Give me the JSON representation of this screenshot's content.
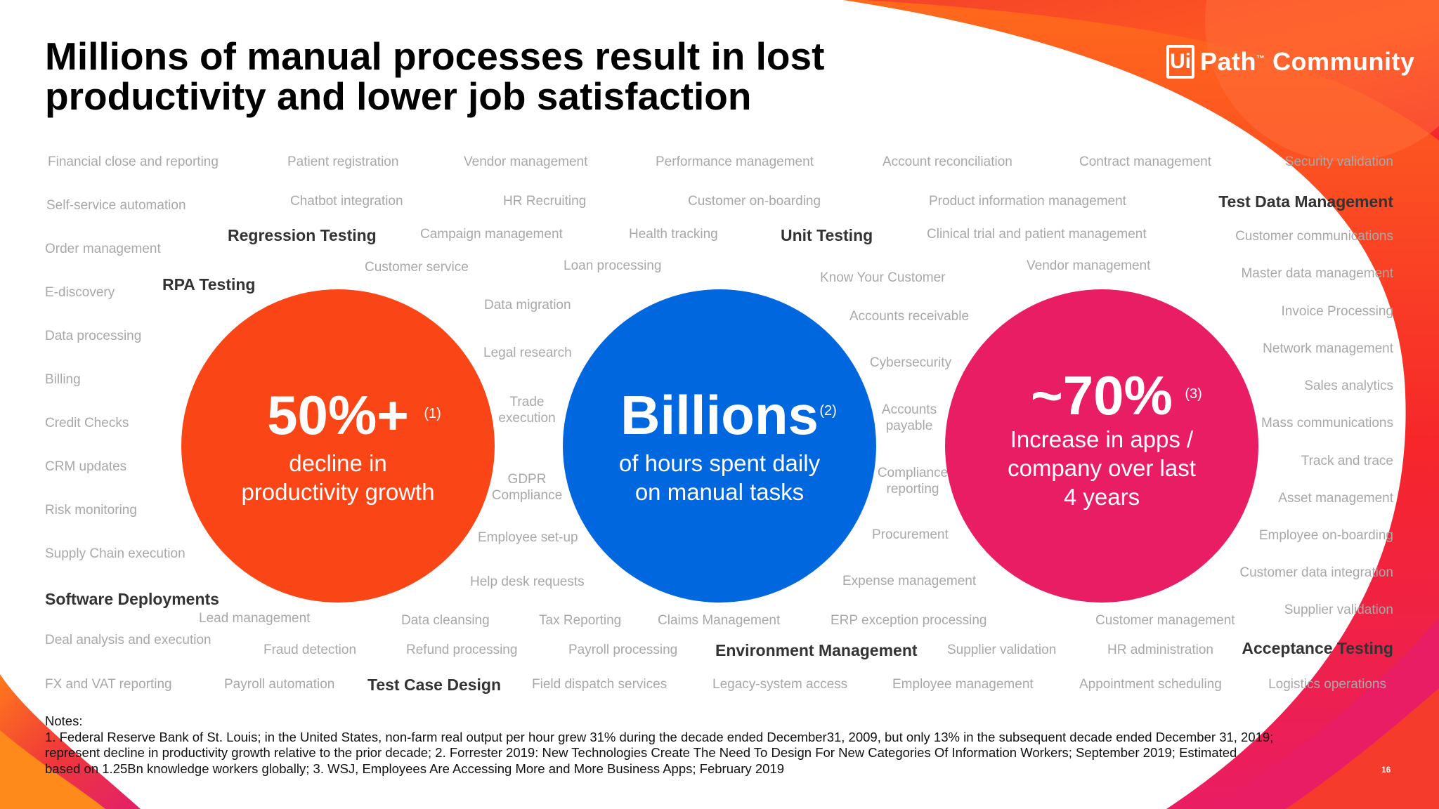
{
  "slide": {
    "title_line1": "Millions of manual processes result in lost",
    "title_line2": "productivity and lower job satisfaction",
    "logo_ui": "Ui",
    "logo_text": "Path",
    "logo_tm": "™",
    "logo_community": "Community",
    "page_number": "16",
    "colors": {
      "orange": "#fa4616",
      "blue": "#0067df",
      "pink": "#e91d63",
      "process_text": "#a8a8a8",
      "highlight_text": "#333333"
    }
  },
  "stats": [
    {
      "value": "50%+",
      "ref": "(1)",
      "line1": "decline in",
      "line2": "productivity growth",
      "line3": ""
    },
    {
      "value": "Billions",
      "ref": "(2)",
      "line1": "of hours spent daily",
      "line2": "on manual tasks",
      "line3": ""
    },
    {
      "value": "~70%",
      "ref": "(3)",
      "line1": "Increase in apps /",
      "line2": "company over last",
      "line3": "4 years"
    }
  ],
  "processes": [
    "Financial close and reporting",
    "Patient registration",
    "Vendor management",
    "Performance management",
    "Account reconciliation",
    "Contract management",
    "Security validation",
    "Self-service automation",
    "Chatbot integration",
    "HR Recruiting",
    "Customer on-boarding",
    "Product information management",
    "Test Data Management",
    "Regression Testing",
    "Campaign management",
    "Health tracking",
    "Unit Testing",
    "Clinical trial and patient management",
    "Customer communications",
    "Order management",
    "Customer service",
    "Loan processing",
    "Know Your Customer",
    "Vendor management",
    "Master data management",
    "RPA Testing",
    "E-discovery",
    "Data migration",
    "Accounts receivable",
    "Invoice Processing",
    "Data processing",
    "Legal research",
    "Cybersecurity",
    "Network management",
    "Billing",
    "Trade execution",
    "Accounts payable",
    "Sales analytics",
    "Credit Checks",
    "Mass communications",
    "CRM updates",
    "GDPR Compliance",
    "Compliance reporting",
    "Track and trace",
    "Risk monitoring",
    "Asset management",
    "Supply Chain execution",
    "Employee set-up",
    "Procurement",
    "Employee on-boarding",
    "Help desk requests",
    "Expense management",
    "Customer data integration",
    "Software Deployments",
    "Lead management",
    "Data cleansing",
    "Tax Reporting",
    "Claims Management",
    "ERP exception processing",
    "Customer management",
    "Supplier validation",
    "Deal analysis and execution",
    "Fraud detection",
    "Refund processing",
    "Payroll processing",
    "Environment Management",
    "Supplier validation",
    "HR administration",
    "Acceptance Testing",
    "FX and VAT reporting",
    "Payroll automation",
    "Test Case Design",
    "Field dispatch services",
    "Legacy-system access",
    "Employee management",
    "Appointment scheduling",
    "Logistics operations"
  ],
  "notes": {
    "heading": "Notes:",
    "line1": "1. Federal Reserve Bank of St. Louis; in the United States, non-farm real output per hour grew 31% during the decade ended December31, 2009, but only 13% in the subsequent decade ended December 31, 2019;",
    "line2": "represent decline in productivity growth relative to the prior decade; 2. Forrester 2019: New Technologies Create The Need To Design For New Categories Of Information Workers; September 2019; Estimated",
    "line3": "based on 1.25Bn knowledge workers globally; 3. WSJ, Employees Are Accessing More and More Business Apps; February 2019"
  }
}
